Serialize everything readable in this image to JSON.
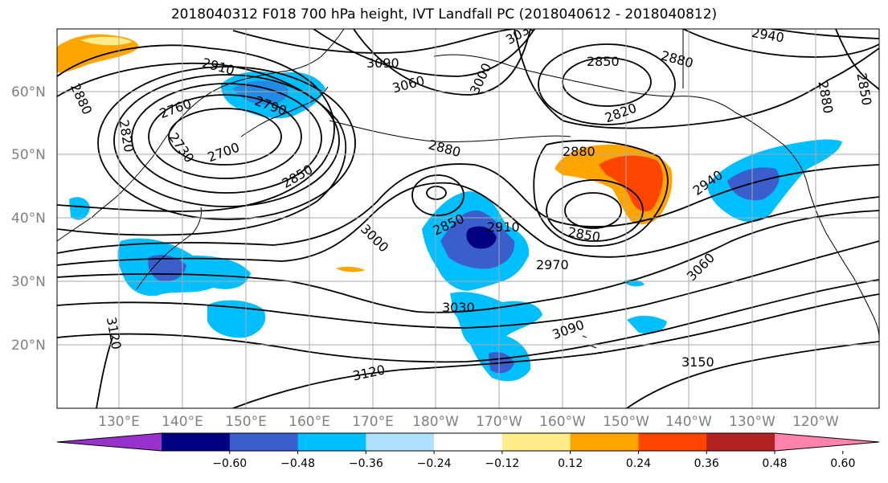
{
  "title": "2018040312 F018 700 hPa height, IVT Landfall PC (2018040612 - 2018040812)",
  "latitude_labels": [
    "60°N",
    "50°N",
    "40°N",
    "30°N",
    "20°N"
  ],
  "longitude_labels": [
    "130°E",
    "140°E",
    "150°E",
    "160°E",
    "170°E",
    "180°W",
    "170°W",
    "160°W",
    "150°W",
    "140°W",
    "130°W",
    "120°W"
  ],
  "contour_labels": [
    "2880",
    "2820",
    "2760",
    "2730",
    "2700",
    "2910",
    "2790",
    "2850",
    "3090",
    "3060",
    "3000",
    "3030",
    "2850",
    "2880",
    "2820",
    "2940",
    "2880",
    "2850",
    "2880",
    "2850",
    "2910",
    "2850",
    "3000",
    "2970",
    "3060",
    "2940",
    "3030",
    "3090",
    "3120",
    "3120",
    "3150"
  ],
  "colorbar": {
    "ticks": [
      "−0.60",
      "−0.48",
      "−0.36",
      "−0.24",
      "−0.12",
      "0.12",
      "0.24",
      "0.36",
      "0.48",
      "0.60"
    ],
    "colors": [
      "#9932CC",
      "#000080",
      "#3A5FCD",
      "#00BFFF",
      "#B0E2FF",
      "#FFFFFF",
      "#FFEC8B",
      "#FFA500",
      "#FF4500",
      "#B22222",
      "#FF82AB"
    ]
  },
  "colors": {
    "neg_strong": "#000080",
    "neg_mid": "#3A5FCD",
    "neg_light": "#00BFFF",
    "neg_pale": "#B0E2FF",
    "pos_pale": "#FFEC8B",
    "pos_light": "#FFA500",
    "pos_mid": "#FF4500",
    "pos_strong": "#B22222",
    "grid": "#aaaaaa",
    "label_gray": "#808080"
  }
}
